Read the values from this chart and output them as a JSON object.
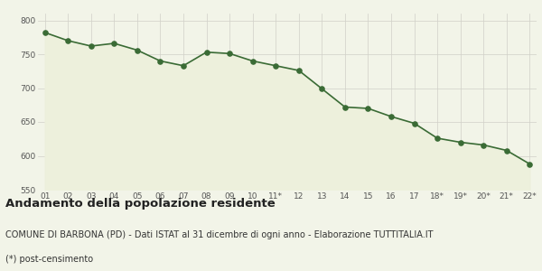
{
  "x_labels": [
    "01",
    "02",
    "03",
    "04",
    "05",
    "06",
    "07",
    "08",
    "09",
    "10",
    "11*",
    "12",
    "13",
    "14",
    "15",
    "16",
    "17",
    "18*",
    "19*",
    "20*",
    "21*",
    "22*"
  ],
  "y_values": [
    782,
    770,
    762,
    766,
    756,
    740,
    733,
    753,
    751,
    740,
    733,
    726,
    699,
    672,
    670,
    658,
    648,
    626,
    620,
    616,
    608,
    588
  ],
  "ylim": [
    550,
    810
  ],
  "yticks": [
    550,
    600,
    650,
    700,
    750,
    800
  ],
  "line_color": "#3a6b35",
  "fill_color": "#edf0dc",
  "marker_color": "#3a6b35",
  "bg_color": "#f2f4e8",
  "grid_color": "#d0d0c8",
  "title": "Andamento della popolazione residente",
  "subtitle": "COMUNE DI BARBONA (PD) - Dati ISTAT al 31 dicembre di ogni anno - Elaborazione TUTTITALIA.IT",
  "footnote": "(*) post-censimento",
  "title_fontsize": 9.5,
  "subtitle_fontsize": 7,
  "footnote_fontsize": 7
}
